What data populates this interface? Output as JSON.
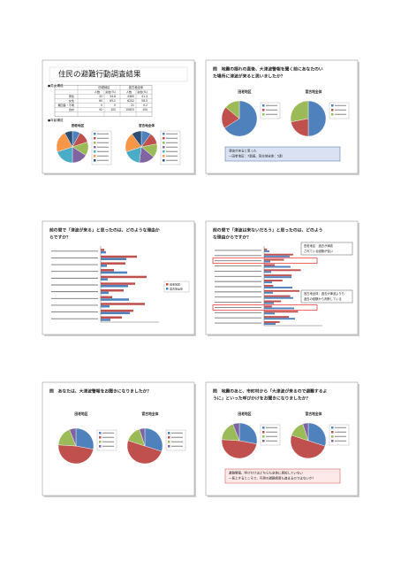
{
  "slides": [
    {
      "title": "住民の避難行動調査結果",
      "section1": "●男女構成",
      "section2": "●年齢構成",
      "table": {
        "header": [
          "田老地区",
          "宮古地全体"
        ],
        "subheader": [
          "人数",
          "割合(%)",
          "人数",
          "割合(%)"
        ],
        "rows": [
          [
            "男性",
            "32",
            "34.8",
            "4380",
            "41.3"
          ],
          [
            "女性",
            "60",
            "65.2",
            "6202",
            "58.5"
          ],
          [
            "無回答・不明",
            "0",
            "0",
            "21",
            "0.2"
          ],
          [
            "合計",
            "92",
            "100",
            "10603",
            "100"
          ]
        ]
      },
      "pie_labels": [
        "田老地区",
        "宮古地全体"
      ]
    },
    {
      "title_lines": [
        "問　地震の揺れの直後、大津波警報を聞く前にあなたのい",
        "た場所に津波が来ると思いましたか？"
      ],
      "pie_labels": [
        "田老地区",
        "宮古地全体"
      ],
      "note_lines": [
        "津波が来ると思った",
        "一田老地区：7割弱、宮古地全体：5割"
      ]
    },
    {
      "title_lines": [
        "前の問で「津波が来る」と思ったのは、どのような理由か",
        "らですか？"
      ],
      "legend": [
        "田老地区",
        "宮古地全体"
      ]
    },
    {
      "title_lines": [
        "前の問で「津波は来ないだろう」と思ったのは、どのよう",
        "な理由からですか？"
      ],
      "callouts": [
        [
          "田老地区：過去が津波",
          "されている経験が強い"
        ],
        [
          "宮古地全体：過去が津波よりも",
          "過去の経験から判断している"
        ]
      ]
    },
    {
      "title_lines": [
        "問　あなたは、大津波警報をお聞きになりましたか？"
      ],
      "pie_labels": [
        "田老地区",
        "宮古地全体"
      ]
    },
    {
      "title_lines": [
        "問　地震のあと、市町村から「大津波が来るので避難するよ",
        "うに」といった呼びかけをお聞きになりましたか？"
      ],
      "pie_labels": [
        "田老地区",
        "宮古地全体"
      ],
      "note_lines": [
        "避難警報、呼びかけはどちらも全体に周知していない",
        "一見上するところで、円滑の避難誘導も進まるのではないか？"
      ]
    }
  ]
}
